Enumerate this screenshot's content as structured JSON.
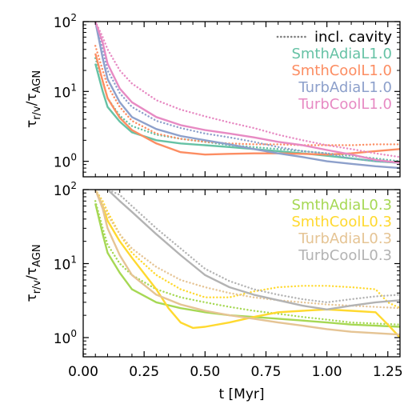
{
  "chart_data": [
    {
      "type": "line",
      "panel": "top",
      "ylabel": "τ_r/v/τ_AGN",
      "yscale": "log",
      "ylim": [
        0.6,
        100
      ],
      "xlim": [
        0.0,
        1.3
      ],
      "ytick_labels": [
        {
          "value": 1,
          "label": "10",
          "exp": "0"
        },
        {
          "value": 10,
          "label": "10",
          "exp": "1"
        },
        {
          "value": 100,
          "label": "10",
          "exp": "2"
        }
      ],
      "legend_position": "top-right",
      "legend": [
        {
          "label": "incl. cavity",
          "color": "#808080",
          "style": "dotted"
        },
        {
          "label": "SmthAdiaL1.0",
          "color": "#66c2a5",
          "style": "solid"
        },
        {
          "label": "SmthCoolL1.0",
          "color": "#fc8d62",
          "style": "solid"
        },
        {
          "label": "TurbAdiaL1.0",
          "color": "#8da0cb",
          "style": "solid"
        },
        {
          "label": "TurbCoolL1.0",
          "color": "#e78ac3",
          "style": "solid"
        }
      ],
      "series": [
        {
          "name": "SmthAdiaL1.0",
          "color": "#66c2a5",
          "style": "solid",
          "x": [
            0.05,
            0.08,
            0.1,
            0.15,
            0.2,
            0.3,
            0.4,
            0.5,
            0.6,
            0.7,
            0.8,
            0.9,
            1.0,
            1.1,
            1.2,
            1.3
          ],
          "y": [
            25,
            10,
            6,
            3.7,
            2.6,
            2.0,
            1.8,
            1.7,
            1.6,
            1.5,
            1.4,
            1.3,
            1.2,
            1.1,
            1.0,
            0.95
          ]
        },
        {
          "name": "",
          "color": "#66c2a5",
          "style": "dotted",
          "x": [
            0.05,
            0.08,
            0.1,
            0.15,
            0.2,
            0.3,
            0.4,
            0.5,
            0.6,
            0.7,
            0.8,
            0.9,
            1.0,
            1.1,
            1.2,
            1.3
          ],
          "y": [
            30,
            14,
            8,
            4.5,
            3.2,
            2.4,
            2.1,
            1.9,
            1.7,
            1.6,
            1.5,
            1.4,
            1.3,
            1.2,
            1.1,
            1.0
          ]
        },
        {
          "name": "SmthCoolL1.0",
          "color": "#fc8d62",
          "style": "solid",
          "x": [
            0.05,
            0.08,
            0.1,
            0.15,
            0.2,
            0.3,
            0.4,
            0.5,
            0.6,
            0.7,
            0.8,
            0.9,
            1.0,
            1.1,
            1.2,
            1.3
          ],
          "y": [
            35,
            14,
            8,
            4.2,
            2.8,
            1.8,
            1.35,
            1.25,
            1.28,
            1.3,
            1.3,
            1.28,
            1.25,
            1.3,
            1.4,
            1.5
          ]
        },
        {
          "name": "",
          "color": "#fc8d62",
          "style": "dotted",
          "x": [
            0.05,
            0.08,
            0.1,
            0.15,
            0.2,
            0.3,
            0.4,
            0.5,
            0.6,
            0.7,
            0.8,
            0.9,
            1.0,
            1.1,
            1.2,
            1.3
          ],
          "y": [
            45,
            20,
            12,
            6,
            3.8,
            2.5,
            2.1,
            1.9,
            1.8,
            1.75,
            1.75,
            1.7,
            1.7,
            1.7,
            1.75,
            1.75
          ]
        },
        {
          "name": "TurbAdiaL1.0",
          "color": "#8da0cb",
          "style": "solid",
          "x": [
            0.05,
            0.08,
            0.1,
            0.15,
            0.2,
            0.3,
            0.4,
            0.5,
            0.6,
            0.7,
            0.8,
            0.9,
            1.0,
            1.1,
            1.2,
            1.3
          ],
          "y": [
            100,
            30,
            15,
            7,
            4.3,
            2.9,
            2.3,
            2.0,
            1.75,
            1.5,
            1.3,
            1.15,
            1.0,
            0.92,
            0.85,
            0.8
          ]
        },
        {
          "name": "",
          "color": "#8da0cb",
          "style": "dotted",
          "x": [
            0.05,
            0.08,
            0.1,
            0.15,
            0.2,
            0.3,
            0.4,
            0.5,
            0.6,
            0.7,
            0.8,
            0.9,
            1.0,
            1.1,
            1.2,
            1.3
          ],
          "y": [
            100,
            40,
            20,
            9.5,
            6,
            3.8,
            3.0,
            2.5,
            2.2,
            1.9,
            1.6,
            1.4,
            1.3,
            1.1,
            1.0,
            0.95
          ]
        },
        {
          "name": "TurbCoolL1.0",
          "color": "#e78ac3",
          "style": "solid",
          "x": [
            0.05,
            0.08,
            0.1,
            0.15,
            0.2,
            0.3,
            0.4,
            0.5,
            0.6,
            0.7,
            0.8,
            0.9,
            1.0,
            1.1,
            1.2,
            1.3
          ],
          "y": [
            100,
            50,
            25,
            11,
            7,
            4.3,
            3.3,
            2.8,
            2.5,
            2.2,
            1.9,
            1.7,
            1.45,
            1.25,
            1.05,
            0.95
          ]
        },
        {
          "name": "",
          "color": "#e78ac3",
          "style": "dotted",
          "x": [
            0.05,
            0.08,
            0.1,
            0.15,
            0.2,
            0.3,
            0.4,
            0.5,
            0.6,
            0.7,
            0.8,
            0.9,
            1.0,
            1.1,
            1.2,
            1.3
          ],
          "y": [
            100,
            60,
            40,
            20,
            13,
            7.5,
            5.5,
            4.4,
            3.6,
            3.0,
            2.4,
            2.0,
            1.7,
            1.5,
            1.3,
            1.15
          ]
        }
      ]
    },
    {
      "type": "line",
      "panel": "bottom",
      "ylabel": "τ_r/v/τ_AGN",
      "xlabel": "t [Myr]",
      "yscale": "log",
      "ylim": [
        0.55,
        100
      ],
      "xlim": [
        0.0,
        1.3
      ],
      "xtick_labels": [
        "0.00",
        "0.25",
        "0.50",
        "0.75",
        "1.00",
        "1.25"
      ],
      "xtick_values": [
        0.0,
        0.25,
        0.5,
        0.75,
        1.0,
        1.25
      ],
      "ytick_labels": [
        {
          "value": 1,
          "label": "10",
          "exp": "0"
        },
        {
          "value": 10,
          "label": "10",
          "exp": "1"
        },
        {
          "value": 100,
          "label": "10",
          "exp": "2"
        }
      ],
      "legend_position": "top-right",
      "legend": [
        {
          "label": "SmthAdiaL0.3",
          "color": "#a6d854",
          "style": "solid"
        },
        {
          "label": "SmthCoolL0.3",
          "color": "#ffd92f",
          "style": "solid"
        },
        {
          "label": "TurbAdiaL0.3",
          "color": "#e5c494",
          "style": "solid"
        },
        {
          "label": "TurbCoolL0.3",
          "color": "#b3b3b3",
          "style": "solid"
        }
      ],
      "series": [
        {
          "name": "SmthAdiaL0.3",
          "color": "#a6d854",
          "style": "solid",
          "x": [
            0.05,
            0.08,
            0.1,
            0.15,
            0.2,
            0.3,
            0.4,
            0.5,
            0.6,
            0.7,
            0.8,
            0.9,
            1.0,
            1.1,
            1.2,
            1.3
          ],
          "y": [
            65,
            25,
            14,
            7.5,
            4.5,
            3.0,
            2.5,
            2.2,
            2.0,
            1.9,
            1.8,
            1.7,
            1.6,
            1.5,
            1.45,
            1.4
          ]
        },
        {
          "name": "",
          "color": "#a6d854",
          "style": "dotted",
          "x": [
            0.05,
            0.08,
            0.1,
            0.15,
            0.2,
            0.3,
            0.4,
            0.5,
            0.6,
            0.7,
            0.8,
            0.9,
            1.0,
            1.1,
            1.2,
            1.3
          ],
          "y": [
            70,
            30,
            18,
            10,
            7,
            4.5,
            3.5,
            3.0,
            2.6,
            2.3,
            2.1,
            1.9,
            1.75,
            1.6,
            1.55,
            1.5
          ]
        },
        {
          "name": "SmthCoolL0.3",
          "color": "#ffd92f",
          "style": "solid",
          "x": [
            0.05,
            0.08,
            0.1,
            0.15,
            0.2,
            0.3,
            0.35,
            0.4,
            0.45,
            0.5,
            0.6,
            0.7,
            0.8,
            0.9,
            1.0,
            1.1,
            1.2,
            1.25,
            1.3
          ],
          "y": [
            100,
            60,
            38,
            20,
            12,
            4.5,
            2.5,
            1.6,
            1.35,
            1.4,
            1.6,
            1.9,
            2.2,
            2.3,
            2.4,
            2.3,
            2.2,
            1.5,
            1.0
          ]
        },
        {
          "name": "",
          "color": "#ffd92f",
          "style": "dotted",
          "x": [
            0.05,
            0.08,
            0.1,
            0.15,
            0.2,
            0.3,
            0.4,
            0.5,
            0.6,
            0.7,
            0.8,
            0.9,
            1.0,
            1.1,
            1.2,
            1.25,
            1.3
          ],
          "y": [
            100,
            70,
            50,
            25,
            14,
            7,
            4.5,
            3.5,
            3.5,
            4.2,
            4.8,
            5.0,
            5.0,
            4.8,
            4.5,
            3.0,
            2.5
          ]
        },
        {
          "name": "TurbAdiaL0.3",
          "color": "#e5c494",
          "style": "solid",
          "x": [
            0.05,
            0.08,
            0.1,
            0.15,
            0.2,
            0.3,
            0.4,
            0.5,
            0.6,
            0.7,
            0.8,
            0.9,
            1.0,
            1.1,
            1.2,
            1.3
          ],
          "y": [
            100,
            55,
            30,
            13,
            7,
            3.8,
            2.8,
            2.3,
            2.0,
            1.8,
            1.6,
            1.45,
            1.3,
            1.2,
            1.15,
            1.1
          ]
        },
        {
          "name": "",
          "color": "#e5c494",
          "style": "dotted",
          "x": [
            0.05,
            0.08,
            0.1,
            0.15,
            0.2,
            0.3,
            0.4,
            0.5,
            0.6,
            0.7,
            0.8,
            0.9,
            1.0,
            1.1,
            1.2,
            1.3
          ],
          "y": [
            100,
            65,
            45,
            25,
            16,
            9,
            6,
            4.8,
            4.0,
            3.5,
            3.2,
            3.0,
            2.8,
            2.7,
            2.6,
            2.5
          ]
        },
        {
          "name": "TurbCoolL0.3",
          "color": "#b3b3b3",
          "style": "solid",
          "x": [
            0.05,
            0.1,
            0.15,
            0.2,
            0.3,
            0.4,
            0.5,
            0.6,
            0.7,
            0.8,
            0.9,
            1.0,
            1.1,
            1.2,
            1.3
          ],
          "y": [
            100,
            100,
            70,
            50,
            25,
            13,
            7,
            4.8,
            3.8,
            3.2,
            2.7,
            2.4,
            2.7,
            3.0,
            3.2
          ]
        },
        {
          "name": "",
          "color": "#b3b3b3",
          "style": "dotted",
          "x": [
            0.05,
            0.1,
            0.15,
            0.2,
            0.3,
            0.4,
            0.5,
            0.6,
            0.7,
            0.8,
            0.9,
            1.0,
            1.1,
            1.2,
            1.3
          ],
          "y": [
            100,
            100,
            85,
            60,
            30,
            16,
            8.5,
            5.8,
            4.5,
            3.8,
            3.3,
            3.0,
            3.3,
            3.6,
            3.8
          ]
        }
      ]
    }
  ]
}
